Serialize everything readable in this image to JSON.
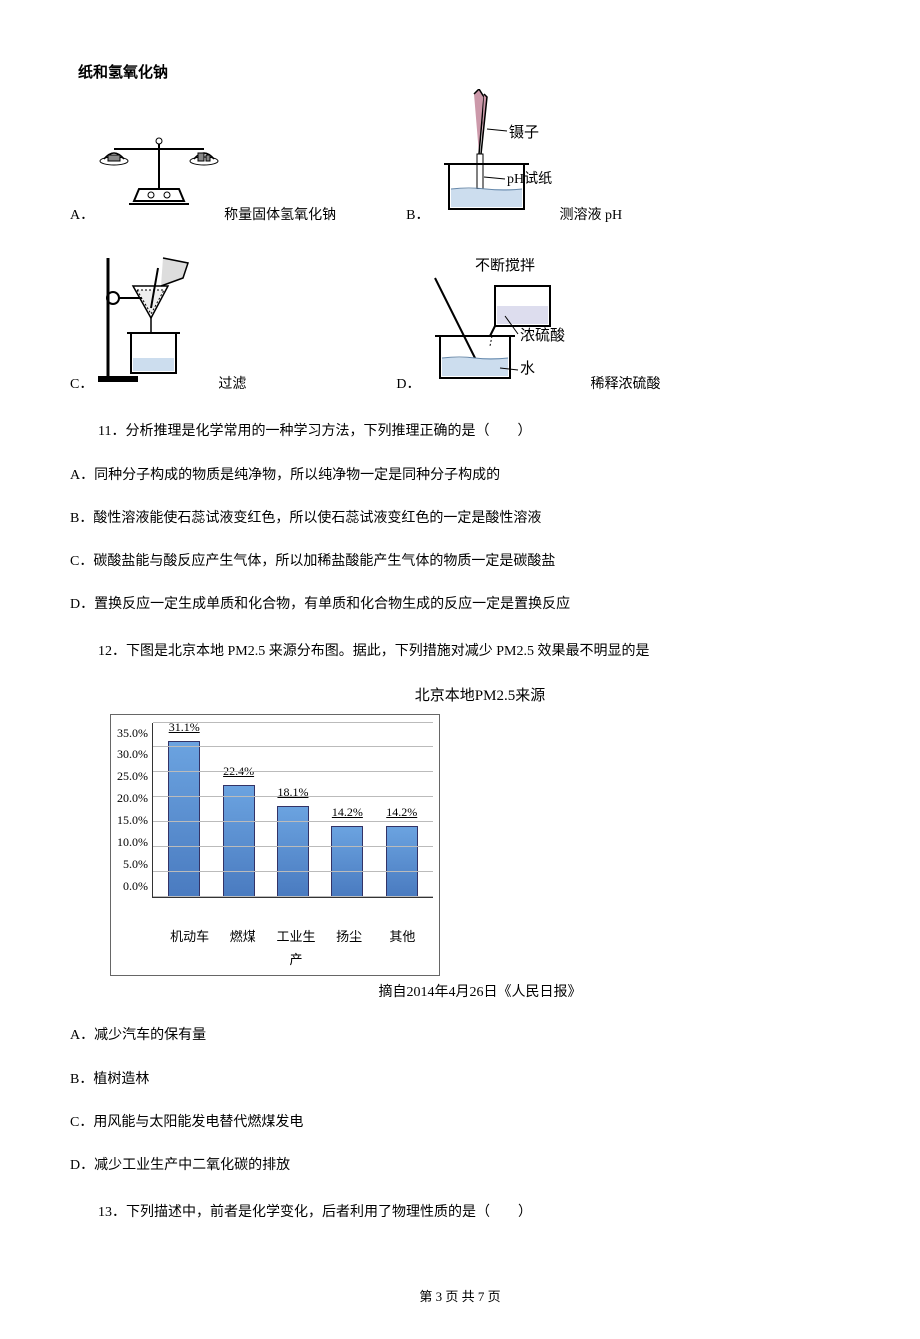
{
  "top_label": "纸和氢氧化钠",
  "optA": {
    "letter": "A．",
    "text": "称量固体氢氧化钠"
  },
  "optB": {
    "letter": "B．",
    "text": "测溶液 pH",
    "lab1": "镊子",
    "lab2": "pH试纸"
  },
  "optC": {
    "letter": "C．",
    "text": "过滤"
  },
  "optD": {
    "letter": "D．",
    "text": "稀释浓硫酸",
    "lab1": "不断搅拌",
    "lab2": "浓硫酸",
    "lab3": "水"
  },
  "q11": {
    "text": "11．分析推理是化学常用的一种学习方法，下列推理正确的是（　　）",
    "A": "A．同种分子构成的物质是纯净物，所以纯净物一定是同种分子构成的",
    "B": "B．酸性溶液能使石蕊试液变红色，所以使石蕊试液变红色的一定是酸性溶液",
    "C": "C．碳酸盐能与酸反应产生气体，所以加稀盐酸能产生气体的物质一定是碳酸盐",
    "D": "D．置换反应一定生成单质和化合物，有单质和化合物生成的反应一定是置换反应"
  },
  "q12": {
    "text": "12．下图是北京本地 PM2.5 来源分布图。据此，下列措施对减少 PM2.5 效果最不明显的是",
    "A": "A．减少汽车的保有量",
    "B": "B．植树造林",
    "C": "C．用风能与太阳能发电替代燃煤发电",
    "D": "D．减少工业生产中二氧化碳的排放"
  },
  "q13": {
    "text": "13．下列描述中，前者是化学变化，后者利用了物理性质的是（　　）"
  },
  "chart": {
    "title": "北京本地PM2.5来源",
    "source": "摘自2014年4月26日《人民日报》",
    "y_ticks": [
      "35.0%",
      "30.0%",
      "25.0%",
      "20.0%",
      "15.0%",
      "10.0%",
      "5.0%",
      "0.0%"
    ],
    "y_max": 35.0,
    "categories": [
      "机动车",
      "燃煤",
      "工业生产",
      "扬尘",
      "其他"
    ],
    "values": [
      31.1,
      22.4,
      18.1,
      14.2,
      14.2
    ],
    "value_labels": [
      "31.1%",
      "22.4%",
      "18.1%",
      "14.2%",
      "14.2%"
    ],
    "bar_color_top": "#6ba3e0",
    "bar_color_bottom": "#4a7bc0",
    "grid_color": "#bbbbbb"
  },
  "footer": "第 3 页 共 7 页"
}
